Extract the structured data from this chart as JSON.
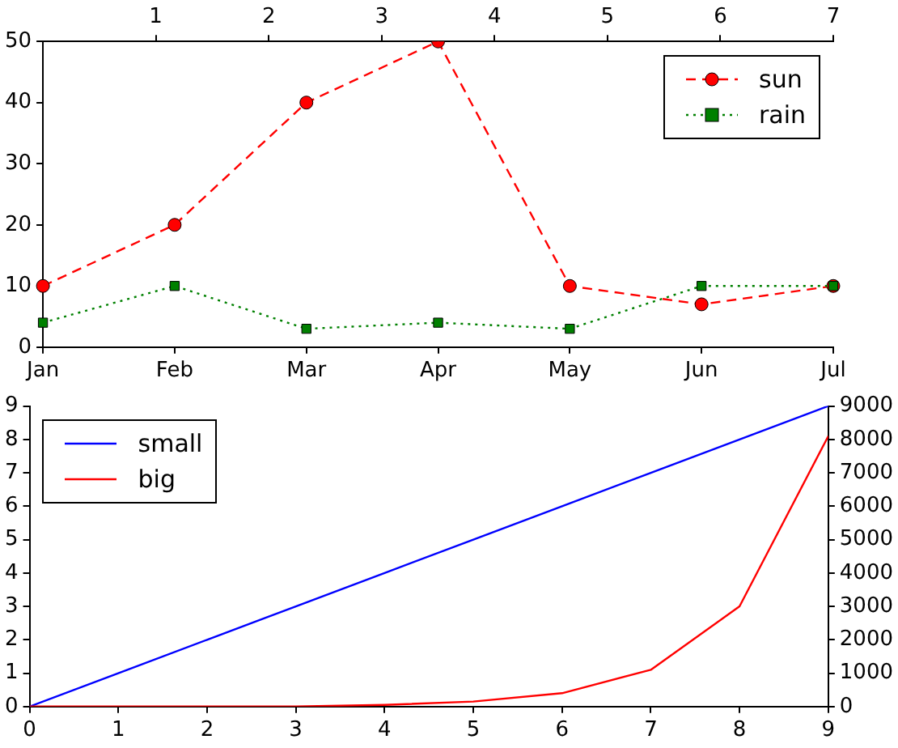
{
  "chart_data": [
    {
      "type": "line",
      "categories": [
        "Jan",
        "Feb",
        "Mar",
        "Apr",
        "May",
        "Jun",
        "Jul"
      ],
      "x2lim": [
        0,
        7
      ],
      "x2ticks": [
        1,
        2,
        3,
        4,
        5,
        6,
        7
      ],
      "ylim": [
        0,
        50
      ],
      "yticks": [
        0,
        10,
        20,
        30,
        40,
        50
      ],
      "grid": false,
      "legend": "top right",
      "series": [
        {
          "name": "sun",
          "color": "#ff0000",
          "marker": "circle",
          "line_style": "dashed",
          "values": [
            10,
            20,
            40,
            50,
            10,
            7,
            10
          ]
        },
        {
          "name": "rain",
          "color": "#008000",
          "marker": "square",
          "line_style": "dotted",
          "values": [
            4,
            10,
            3,
            4,
            3,
            10,
            10
          ]
        }
      ]
    },
    {
      "type": "line",
      "x": [
        0,
        1,
        2,
        3,
        4,
        5,
        6,
        7,
        8,
        9
      ],
      "xlim": [
        0,
        9
      ],
      "xticks": [
        0,
        1,
        2,
        3,
        4,
        5,
        6,
        7,
        8,
        9
      ],
      "ylim": [
        0,
        9
      ],
      "yticks": [
        0,
        1,
        2,
        3,
        4,
        5,
        6,
        7,
        8,
        9
      ],
      "y2lim": [
        0,
        9000
      ],
      "y2ticks": [
        0,
        1000,
        2000,
        3000,
        4000,
        5000,
        6000,
        7000,
        8000,
        9000
      ],
      "grid": false,
      "legend": "top left",
      "marker": "none",
      "series": [
        {
          "name": "small",
          "color": "#0000ff",
          "line_style": "solid",
          "values": [
            0,
            1,
            2,
            3,
            4,
            5,
            6,
            7,
            8,
            9
          ]
        },
        {
          "name": "big",
          "color": "#ff0000",
          "line_style": "solid",
          "axis": "y2",
          "values": [
            0,
            0,
            0,
            0,
            50,
            150,
            400,
            1100,
            3000,
            8100
          ]
        }
      ]
    }
  ]
}
